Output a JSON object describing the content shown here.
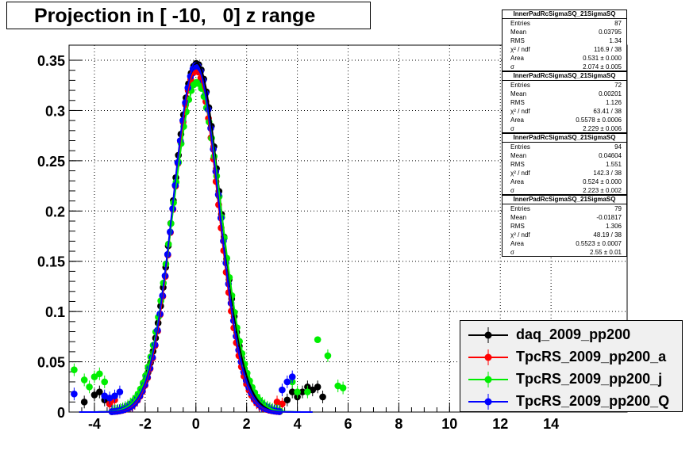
{
  "title": "Projection in [ -10,   0] z range",
  "stats": [
    {
      "name": "InnerPadRcSigmaSQ_21SigmaSQ",
      "rows": [
        [
          "Entries",
          "87"
        ],
        [
          "Mean",
          "0.03795"
        ],
        [
          "RMS",
          "1.34"
        ],
        [
          "χ² / ndf",
          "116.9 / 38"
        ],
        [
          "Area",
          "0.531 ± 0.000"
        ],
        [
          "σ",
          "2.074 ± 0.005"
        ]
      ]
    },
    {
      "name": "InnerPadRcSigmaSQ_21SigmaSQ",
      "rows": [
        [
          "Entries",
          "72"
        ],
        [
          "Mean",
          "0.00201"
        ],
        [
          "RMS",
          "1.126"
        ],
        [
          "χ² / ndf",
          "63.41 / 38"
        ],
        [
          "Area",
          "0.5578 ± 0.0006"
        ],
        [
          "σ",
          "2.229 ± 0.006"
        ]
      ]
    },
    {
      "name": "InnerPadRcSigmaSQ_21SigmaSQ",
      "rows": [
        [
          "Entries",
          "94"
        ],
        [
          "Mean",
          "0.04604"
        ],
        [
          "RMS",
          "1.551"
        ],
        [
          "χ² / ndf",
          "142.3 / 38"
        ],
        [
          "Area",
          "0.524 ± 0.000"
        ],
        [
          "σ",
          "2.223 ± 0.002"
        ]
      ]
    },
    {
      "name": "InnerPadRcSigmaSQ_21SigmaSQ",
      "rows": [
        [
          "Entries",
          "79"
        ],
        [
          "Mean",
          "-0.01817"
        ],
        [
          "RMS",
          "1.306"
        ],
        [
          "χ² / ndf",
          "48.19 / 38"
        ],
        [
          "Area",
          "0.5523 ± 0.0007"
        ],
        [
          "σ",
          "2.55 ± 0.01"
        ]
      ]
    }
  ],
  "chart_data": {
    "type": "scatter",
    "title": "Projection in [ -10,   0] z range",
    "xlabel": "",
    "ylabel": "",
    "xlim": [
      -5,
      17
    ],
    "ylim": [
      0,
      0.365
    ],
    "xticks": [
      -4,
      -2,
      0,
      2,
      4,
      6,
      8,
      10,
      12,
      14
    ],
    "yticks": [
      0,
      0.05,
      0.1,
      0.15,
      0.2,
      0.25,
      0.3,
      0.35
    ],
    "ytick_labels": [
      "0",
      "0.05",
      "0.1",
      "0.15",
      "0.2",
      "0.25",
      "0.3",
      "0.35"
    ],
    "grid": true,
    "legend_position": "bottom-right",
    "series": [
      {
        "name": "daq_2009_pp200",
        "color": "#000000",
        "fit_amp": 0.347,
        "fit_sigma": 0.92,
        "fit_mean": 0.04,
        "extra": [
          [
            -4.4,
            0.01
          ],
          [
            -4.0,
            0.017
          ],
          [
            -3.8,
            0.02
          ],
          [
            -3.6,
            0.012
          ],
          [
            -3.4,
            0.008
          ],
          [
            3.6,
            0.012
          ],
          [
            3.8,
            0.02
          ],
          [
            4.0,
            0.015
          ],
          [
            4.2,
            0.02
          ],
          [
            4.4,
            0.025
          ],
          [
            4.6,
            0.022
          ],
          [
            4.8,
            0.025
          ],
          [
            5.0,
            0.015
          ]
        ]
      },
      {
        "name": "TpcRS_2009_pp200_a",
        "color": "#ff0000",
        "fit_amp": 0.34,
        "fit_sigma": 0.89,
        "fit_mean": 0.0,
        "extra": [
          [
            -3.4,
            0.008
          ],
          [
            -3.2,
            0.012
          ],
          [
            3.2,
            0.01
          ],
          [
            3.4,
            0.008
          ]
        ]
      },
      {
        "name": "TpcRS_2009_pp200_j",
        "color": "#00ee00",
        "fit_amp": 0.328,
        "fit_sigma": 0.96,
        "fit_mean": 0.05,
        "extra": [
          [
            -4.8,
            0.042
          ],
          [
            -4.4,
            0.032
          ],
          [
            -4.2,
            0.025
          ],
          [
            -4.0,
            0.035
          ],
          [
            -3.8,
            0.038
          ],
          [
            -3.6,
            0.03
          ],
          [
            3.8,
            0.03
          ],
          [
            4.0,
            0.02
          ],
          [
            4.4,
            0.02
          ],
          [
            4.8,
            0.072
          ],
          [
            5.2,
            0.056
          ],
          [
            5.6,
            0.026
          ],
          [
            5.8,
            0.024
          ]
        ]
      },
      {
        "name": "TpcRS_2009_pp200_Q",
        "color": "#0000ff",
        "fit_amp": 0.345,
        "fit_sigma": 0.9,
        "fit_mean": 0.0,
        "extra": [
          [
            -4.8,
            0.018
          ],
          [
            -3.6,
            0.016
          ],
          [
            -3.4,
            0.014
          ],
          [
            -3.2,
            0.016
          ],
          [
            -3.0,
            0.02
          ],
          [
            3.4,
            0.022
          ],
          [
            3.6,
            0.03
          ],
          [
            3.8,
            0.035
          ]
        ]
      }
    ]
  }
}
